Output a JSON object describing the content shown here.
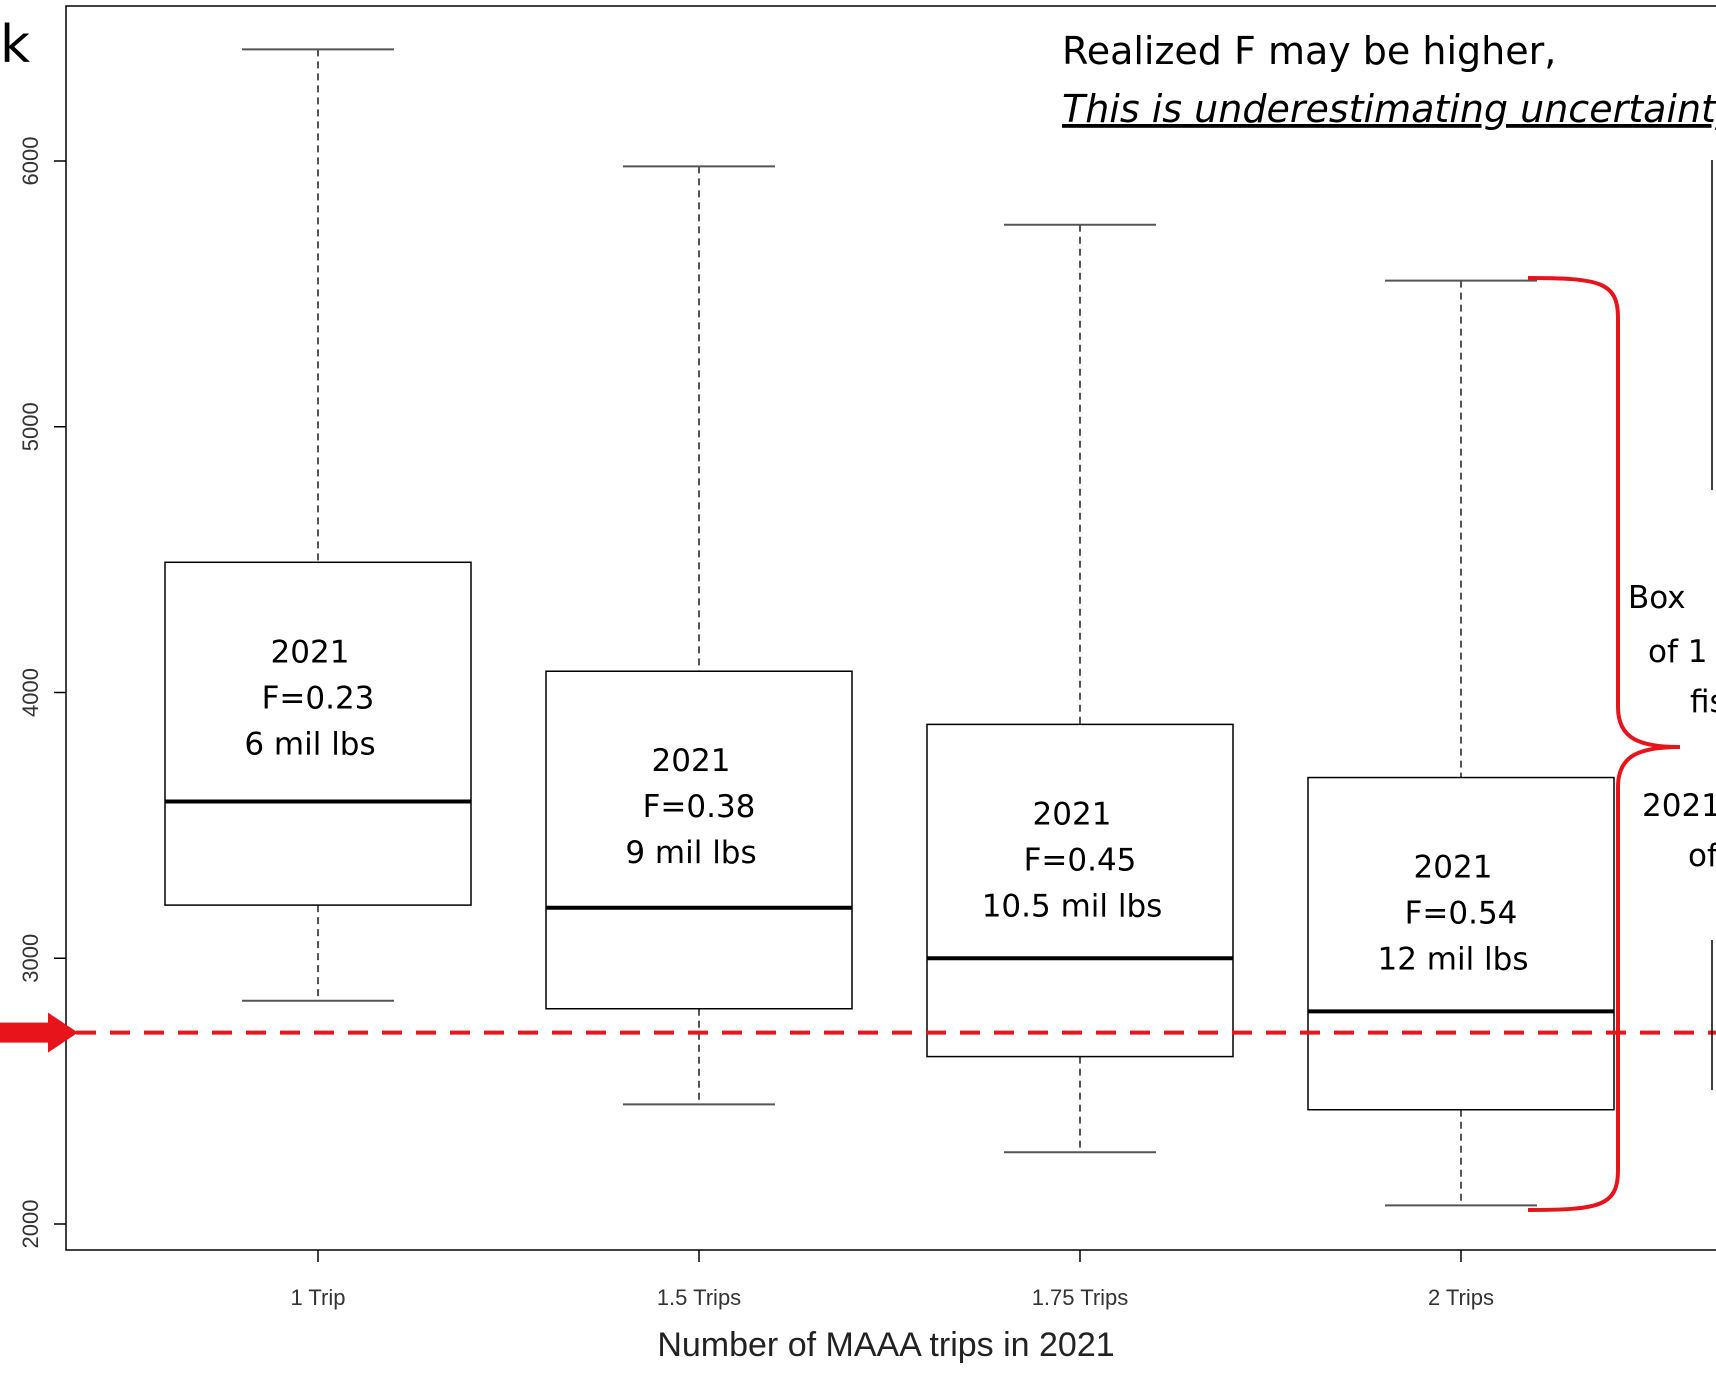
{
  "slide_letter": "k",
  "note": {
    "line1": "Realized F may be higher,",
    "line2": "This is underestimating uncertainty"
  },
  "side_text": [
    "Box",
    "of 1",
    "fis",
    "2021",
    "of"
  ],
  "box_labels": [
    [
      "2021",
      "F=0.23",
      "6 mil lbs"
    ],
    [
      "2021",
      "F=0.38",
      "9 mil lbs"
    ],
    [
      "2021",
      "F=0.45",
      "10.5 mil lbs"
    ],
    [
      "2021",
      "F=0.54",
      "12 mil lbs"
    ]
  ],
  "colors": {
    "reference": "#e8141b",
    "box": "#000000",
    "whisker": "#555555"
  },
  "chart_data": {
    "type": "boxplot",
    "title": "",
    "xlabel": "Number of MAAA trips in 2021",
    "ylabel": "",
    "categories": [
      "1 Trip",
      "1.5 Trips",
      "1.75 Trips",
      "2 Trips"
    ],
    "boxes": [
      {
        "min": 2840,
        "q1": 3200,
        "median": 3590,
        "q3": 4490,
        "max": 6420
      },
      {
        "min": 2450,
        "q1": 2810,
        "median": 3190,
        "q3": 4080,
        "max": 5980
      },
      {
        "min": 2270,
        "q1": 2630,
        "median": 3000,
        "q3": 3880,
        "max": 5760
      },
      {
        "min": 2070,
        "q1": 2430,
        "median": 2800,
        "q3": 3680,
        "max": 5550
      }
    ],
    "reference_line": {
      "y": 2720,
      "style": "dashed"
    },
    "yticks": [
      2000,
      3000,
      4000,
      5000,
      6000
    ],
    "ylim": [
      1900,
      6600
    ],
    "grid": false,
    "legend": "none"
  }
}
